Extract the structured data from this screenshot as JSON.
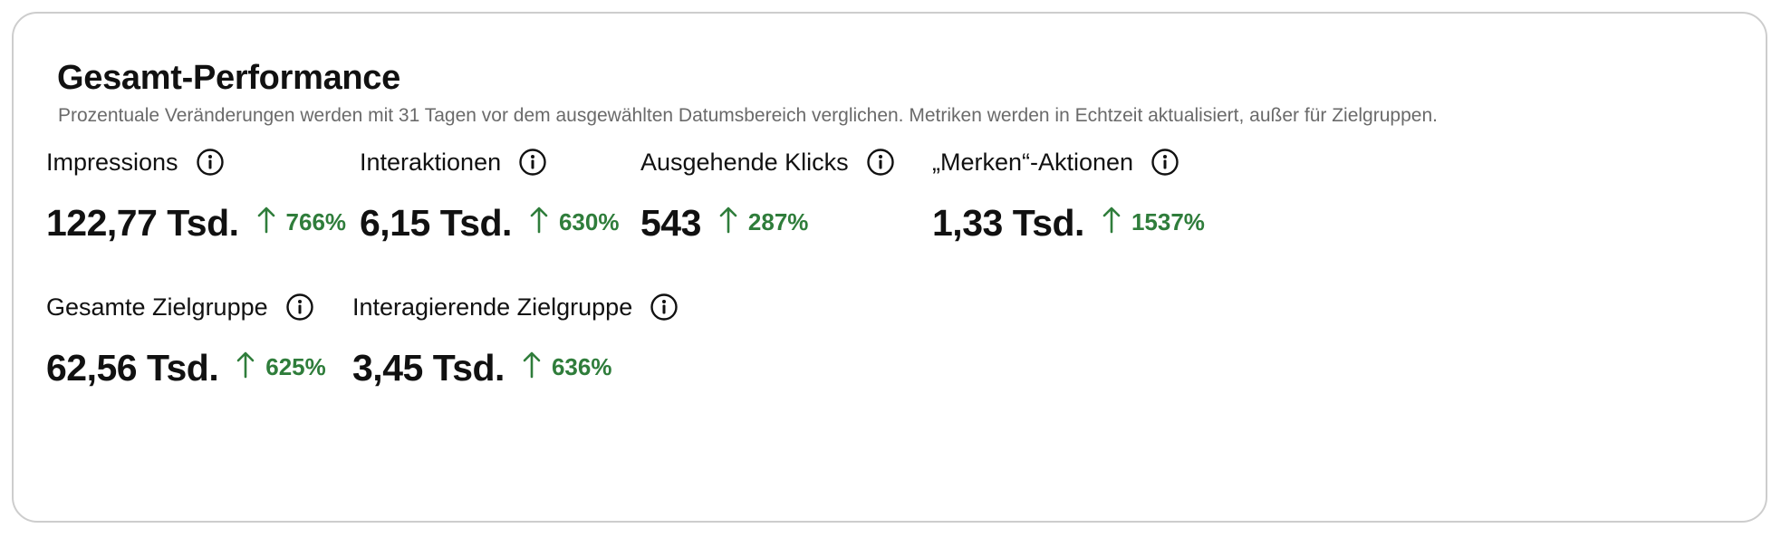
{
  "header": {
    "title": "Gesamt-Performance",
    "subtitle": "Prozentuale Veränderungen werden mit 31 Tagen vor dem ausgewählten Datumsbereich verglichen. Metriken werden in Echtzeit aktualisiert, außer für Zielgruppen."
  },
  "colors": {
    "positive_change": "#2f7d3b",
    "card_border": "#cdcdcd",
    "subtitle_text": "#6a6a6a"
  },
  "metrics": {
    "impressions": {
      "label": "Impressions",
      "value": "122,77 Tsd.",
      "change": "766%",
      "trend": "up",
      "icon": "info-icon"
    },
    "interactions": {
      "label": "Interaktionen",
      "value": "6,15 Tsd.",
      "change": "630%",
      "trend": "up",
      "icon": "info-icon"
    },
    "outbound_clicks": {
      "label": "Ausgehende Klicks",
      "value": "543",
      "change": "287%",
      "trend": "up",
      "icon": "info-icon"
    },
    "saves": {
      "label": "„Merken“-Aktionen",
      "value": "1,33 Tsd.",
      "change": "1537%",
      "trend": "up",
      "icon": "info-icon"
    },
    "total_audience": {
      "label": "Gesamte Zielgruppe",
      "value": "62,56 Tsd.",
      "change": "625%",
      "trend": "up",
      "icon": "info-icon"
    },
    "engaged_audience": {
      "label": "Interagierende Zielgruppe",
      "value": "3,45 Tsd.",
      "change": "636%",
      "trend": "up",
      "icon": "info-icon"
    }
  }
}
